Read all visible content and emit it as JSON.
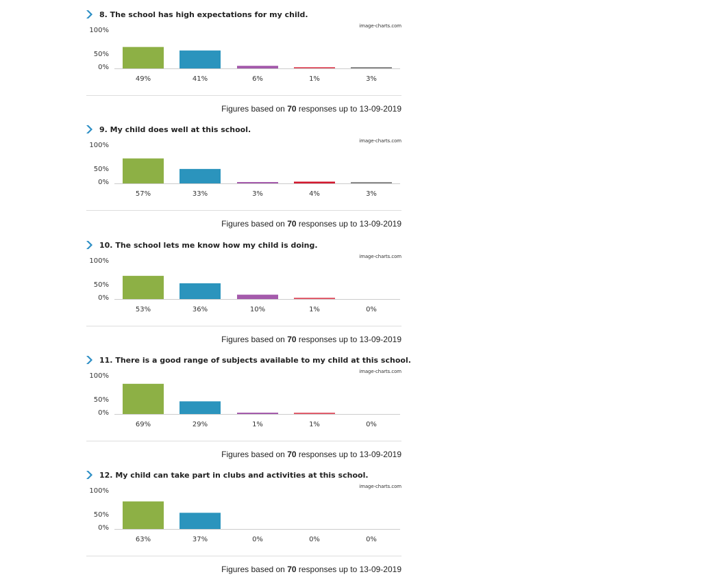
{
  "colors": {
    "chevron": "#2a8dc4",
    "baseline": "#cccccc",
    "divider": "#dddddd"
  },
  "watermark": "image-charts.com",
  "chart_data": [
    {
      "type": "bar",
      "title": "8. The school has high expectations for my child.",
      "categories": [
        "",
        "",
        "",
        "",
        ""
      ],
      "values": [
        49,
        41,
        6,
        1,
        3
      ],
      "labels": [
        "49%",
        "41%",
        "6%",
        "1%",
        "3%"
      ],
      "colors": [
        "#8db045",
        "#2b94bd",
        "#a45aab",
        "#e05c6b",
        "#8c8c8c"
      ],
      "yticks": [
        "100%",
        "50%",
        "0%"
      ],
      "ylim": [
        0,
        100
      ],
      "footer": {
        "prefix": "Figures based on",
        "count": "70",
        "suffix": "responses up to 13-09-2019"
      }
    },
    {
      "type": "bar",
      "title": "9. My child does well at this school.",
      "categories": [
        "",
        "",
        "",
        "",
        ""
      ],
      "values": [
        57,
        33,
        3,
        4,
        3
      ],
      "labels": [
        "57%",
        "33%",
        "3%",
        "4%",
        "3%"
      ],
      "colors": [
        "#8db045",
        "#2b94bd",
        "#a45aab",
        "#d2172d",
        "#8c8c8c"
      ],
      "yticks": [
        "100%",
        "50%",
        "0%"
      ],
      "ylim": [
        0,
        100
      ],
      "footer": {
        "prefix": "Figures based on",
        "count": "70",
        "suffix": "responses up to 13-09-2019"
      }
    },
    {
      "type": "bar",
      "title": "10. The school lets me know how my child is doing.",
      "categories": [
        "",
        "",
        "",
        "",
        ""
      ],
      "values": [
        53,
        36,
        10,
        1,
        0
      ],
      "labels": [
        "53%",
        "36%",
        "10%",
        "1%",
        "0%"
      ],
      "colors": [
        "#8db045",
        "#2b94bd",
        "#a45aab",
        "#e05c6b",
        "#8c8c8c"
      ],
      "yticks": [
        "100%",
        "50%",
        "0%"
      ],
      "ylim": [
        0,
        100
      ],
      "footer": {
        "prefix": "Figures based on",
        "count": "70",
        "suffix": "responses up to 13-09-2019"
      }
    },
    {
      "type": "bar",
      "title": "11. There is a good range of subjects available to my child at this school.",
      "categories": [
        "",
        "",
        "",
        "",
        ""
      ],
      "values": [
        69,
        29,
        1,
        1,
        0
      ],
      "labels": [
        "69%",
        "29%",
        "1%",
        "1%",
        "0%"
      ],
      "colors": [
        "#8db045",
        "#2b94bd",
        "#a45aab",
        "#e05c6b",
        "#8c8c8c"
      ],
      "yticks": [
        "100%",
        "50%",
        "0%"
      ],
      "ylim": [
        0,
        100
      ],
      "footer": {
        "prefix": "Figures based on",
        "count": "70",
        "suffix": "responses up to 13-09-2019"
      }
    },
    {
      "type": "bar",
      "title": "12. My child can take part in clubs and activities at this school.",
      "categories": [
        "",
        "",
        "",
        "",
        ""
      ],
      "values": [
        63,
        37,
        0,
        0,
        0
      ],
      "labels": [
        "63%",
        "37%",
        "0%",
        "0%",
        "0%"
      ],
      "colors": [
        "#8db045",
        "#2b94bd",
        "#a45aab",
        "#e05c6b",
        "#8c8c8c"
      ],
      "yticks": [
        "100%",
        "50%",
        "0%"
      ],
      "ylim": [
        0,
        100
      ],
      "footer": {
        "prefix": "Figures based on",
        "count": "70",
        "suffix": "responses up to 13-09-2019"
      }
    }
  ]
}
